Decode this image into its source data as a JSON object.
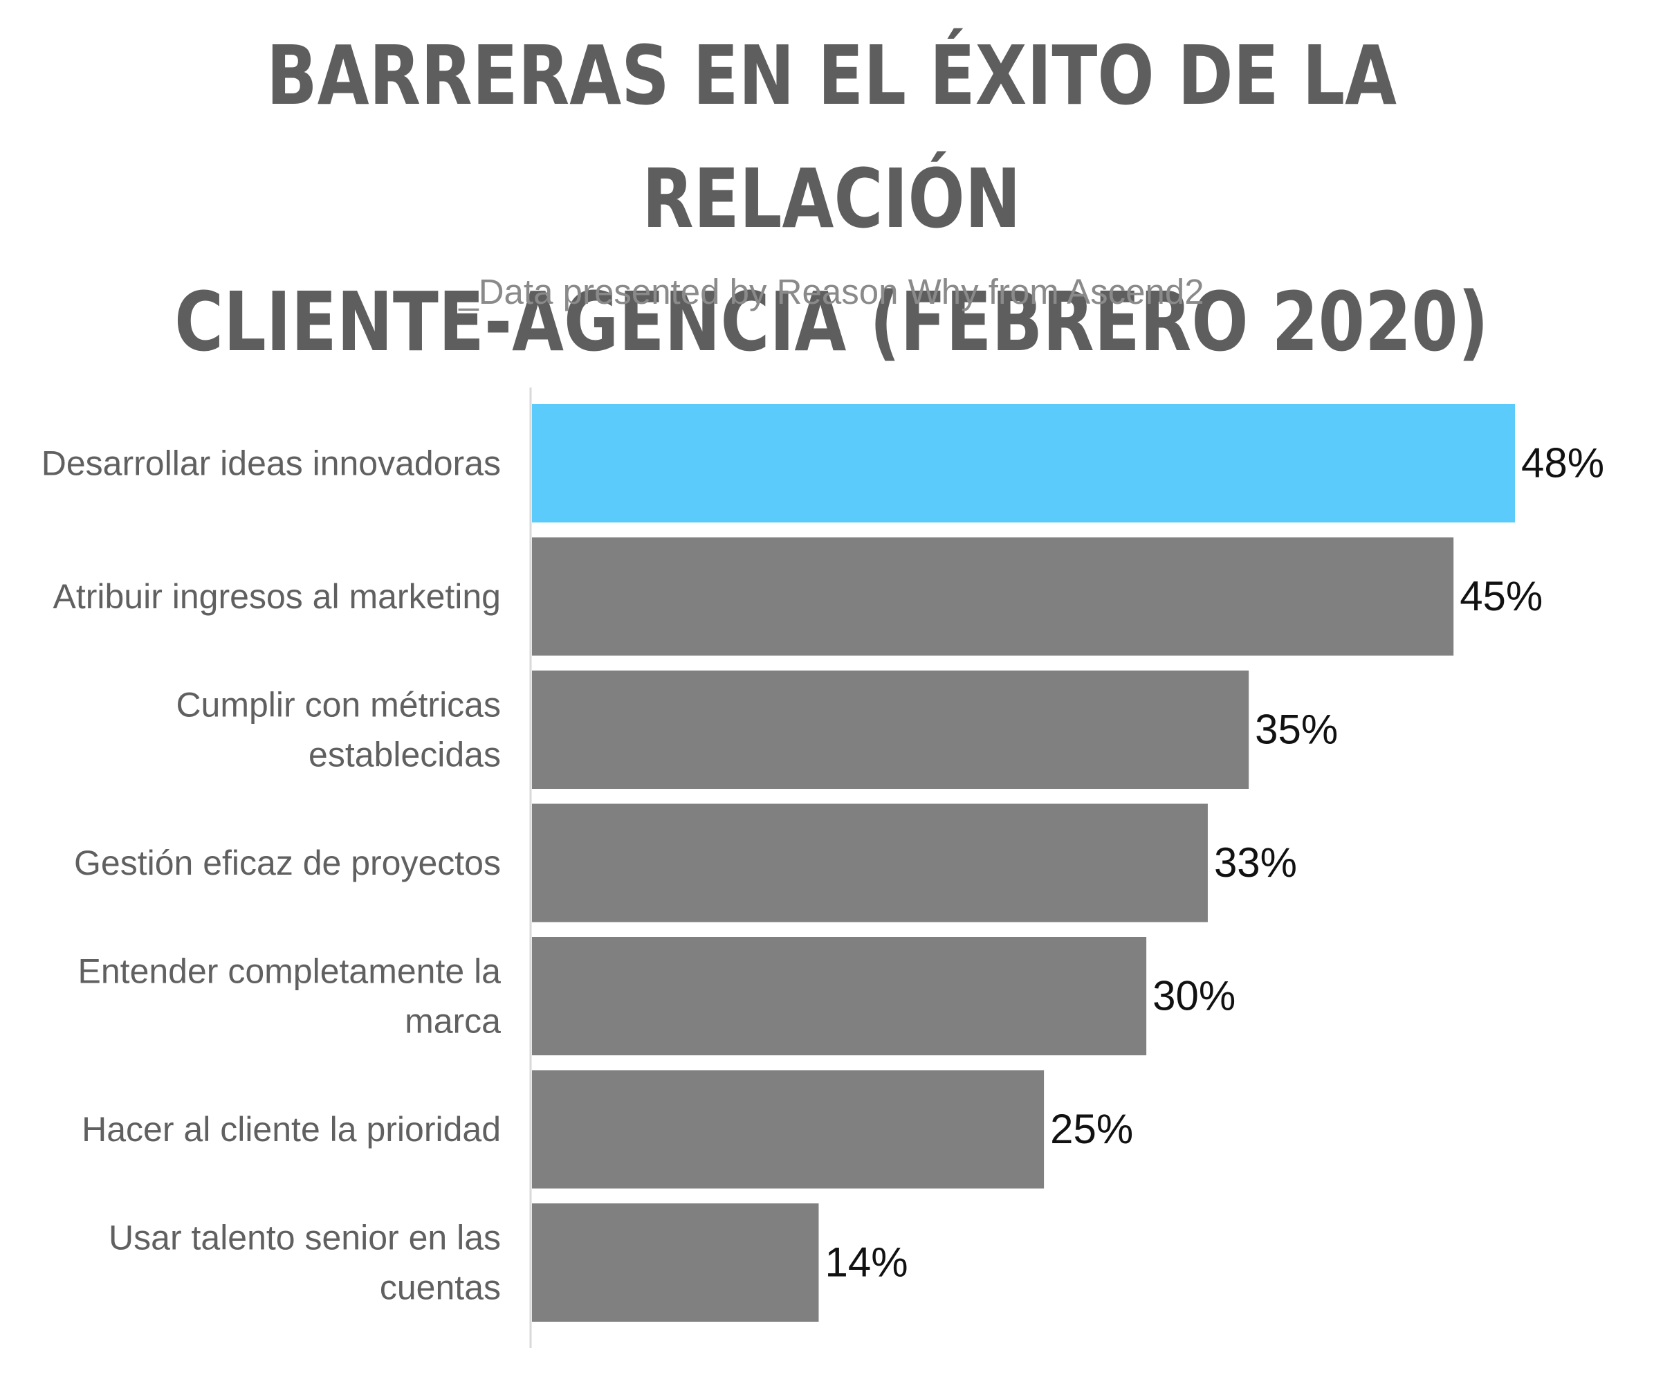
{
  "chart_data": {
    "type": "bar",
    "orientation": "horizontal",
    "title_lines": [
      "BARRERAS EN EL ÉXITO DE LA RELACIÓN",
      "CLIENTE-AGENCIA (FEBRERO 2020)"
    ],
    "subtitle": "_Data presented by Reason Why from Ascend2",
    "categories": [
      [
        "Desarrollar ideas innovadoras"
      ],
      [
        "Atribuir ingresos al marketing"
      ],
      [
        "Cumplir con métricas",
        "establecidas"
      ],
      [
        "Gestión eficaz de proyectos"
      ],
      [
        "Entender completamente la",
        "marca"
      ],
      [
        "Hacer al cliente la prioridad"
      ],
      [
        "Usar talento senior en las",
        "cuentas"
      ]
    ],
    "values": [
      48,
      45,
      35,
      33,
      30,
      25,
      14
    ],
    "value_labels": [
      "48%",
      "45%",
      "35%",
      "33%",
      "30%",
      "25%",
      "14%"
    ],
    "xlim": [
      0,
      48
    ],
    "grid": false,
    "legend": "none",
    "colors": {
      "highlight": "#5bcbfc",
      "bar": "#808080",
      "axis": "#d9d9d9"
    },
    "highlight_index": 0
  }
}
